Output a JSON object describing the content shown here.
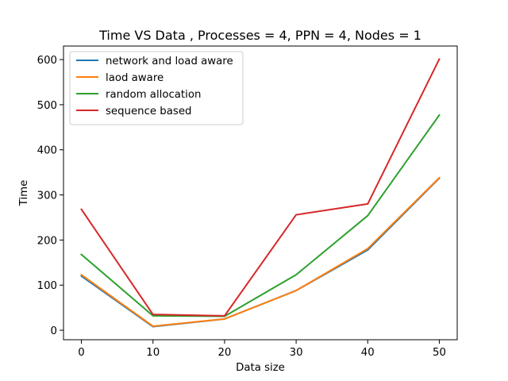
{
  "chart_data": {
    "type": "line",
    "title": "Time VS Data , Processes = 4, PPN = 4, Nodes = 1",
    "xlabel": "Data size",
    "ylabel": "Time",
    "x": [
      0,
      10,
      20,
      30,
      40,
      50
    ],
    "xlim": [
      -2.5,
      52.5
    ],
    "ylim": [
      -21,
      630
    ],
    "xticks": [
      0,
      10,
      20,
      30,
      40,
      50
    ],
    "yticks": [
      0,
      100,
      200,
      300,
      400,
      500,
      600
    ],
    "grid": false,
    "legend_position": "upper left",
    "series": [
      {
        "name": "network and load aware",
        "color": "#1f77b4",
        "values": [
          120,
          8,
          25,
          88,
          178,
          337
        ]
      },
      {
        "name": "laod aware",
        "color": "#ff7f0e",
        "values": [
          123,
          9,
          25,
          88,
          181,
          338
        ]
      },
      {
        "name": "random allocation",
        "color": "#2ca02c",
        "values": [
          168,
          32,
          31,
          123,
          254,
          477
        ]
      },
      {
        "name": "sequence based",
        "color": "#d62728",
        "values": [
          268,
          35,
          32,
          256,
          280,
          601
        ]
      }
    ]
  }
}
